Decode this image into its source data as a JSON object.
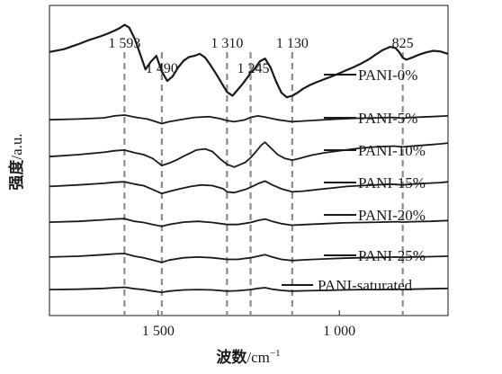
{
  "chart_data": {
    "type": "line",
    "title": "",
    "xlabel_cjk": "波数",
    "xlabel_unit": "/cm",
    "xlabel_exp": "−1",
    "ylabel_cjk": "强度",
    "ylabel_unit": "/a.u.",
    "xlim": [
      1800,
      700
    ],
    "x_ticks": [
      1500,
      1000
    ],
    "x_tick_labels": [
      "1 500",
      "1 000"
    ],
    "grid": false,
    "peak_lines": [
      1593,
      1490,
      1310,
      1245,
      1130,
      825
    ],
    "peak_labels": [
      "1 593",
      "1 490",
      "1 310",
      "1 245",
      "1 130",
      "825"
    ],
    "series": [
      {
        "name": "PANI-0%",
        "x": [
          1800,
          1760,
          1720,
          1690,
          1660,
          1640,
          1620,
          1605,
          1593,
          1580,
          1565,
          1550,
          1535,
          1520,
          1505,
          1490,
          1475,
          1460,
          1445,
          1430,
          1415,
          1400,
          1385,
          1370,
          1355,
          1340,
          1325,
          1310,
          1295,
          1280,
          1265,
          1250,
          1245,
          1235,
          1220,
          1205,
          1190,
          1175,
          1160,
          1145,
          1130,
          1115,
          1100,
          1080,
          1060,
          1040,
          1020,
          1000,
          980,
          960,
          940,
          920,
          900,
          880,
          860,
          845,
          835,
          825,
          815,
          800,
          780,
          760,
          740,
          720,
          700
        ],
        "y": [
          9.35,
          9.42,
          9.55,
          9.66,
          9.75,
          9.82,
          9.9,
          9.97,
          10.05,
          9.98,
          9.7,
          9.3,
          8.9,
          9.1,
          9.25,
          8.85,
          8.6,
          8.72,
          8.95,
          9.12,
          9.22,
          9.25,
          9.3,
          9.2,
          9.0,
          8.78,
          8.55,
          8.32,
          8.22,
          8.38,
          8.55,
          8.74,
          8.82,
          8.9,
          9.1,
          9.18,
          8.95,
          8.6,
          8.3,
          8.18,
          8.22,
          8.3,
          8.4,
          8.5,
          8.58,
          8.65,
          8.72,
          8.8,
          8.88,
          8.96,
          9.05,
          9.15,
          9.28,
          9.4,
          9.48,
          9.45,
          9.35,
          9.2,
          9.15,
          9.2,
          9.28,
          9.34,
          9.38,
          9.36,
          9.3
        ]
      },
      {
        "name": "PANI-5%",
        "x": [
          1800,
          1720,
          1650,
          1620,
          1593,
          1560,
          1530,
          1510,
          1490,
          1470,
          1440,
          1400,
          1360,
          1330,
          1310,
          1290,
          1260,
          1245,
          1225,
          1200,
          1170,
          1140,
          1130,
          1110,
          1080,
          1040,
          1000,
          950,
          900,
          850,
          825,
          800,
          750,
          700
        ],
        "y": [
          7.6,
          7.62,
          7.65,
          7.7,
          7.72,
          7.66,
          7.62,
          7.56,
          7.5,
          7.55,
          7.6,
          7.66,
          7.68,
          7.63,
          7.58,
          7.55,
          7.6,
          7.66,
          7.7,
          7.66,
          7.6,
          7.56,
          7.55,
          7.56,
          7.58,
          7.6,
          7.62,
          7.64,
          7.65,
          7.66,
          7.64,
          7.66,
          7.68,
          7.7
        ]
      },
      {
        "name": "PANI-10%",
        "x": [
          1800,
          1720,
          1650,
          1620,
          1593,
          1565,
          1540,
          1515,
          1490,
          1470,
          1450,
          1430,
          1410,
          1395,
          1370,
          1350,
          1330,
          1310,
          1290,
          1260,
          1245,
          1230,
          1215,
          1205,
          1190,
          1170,
          1150,
          1130,
          1110,
          1080,
          1040,
          1000,
          950,
          900,
          850,
          825,
          800,
          760,
          720,
          700
        ],
        "y": [
          6.65,
          6.7,
          6.76,
          6.8,
          6.82,
          6.75,
          6.7,
          6.6,
          6.42,
          6.48,
          6.56,
          6.66,
          6.75,
          6.82,
          6.85,
          6.78,
          6.6,
          6.45,
          6.38,
          6.5,
          6.62,
          6.78,
          6.95,
          7.02,
          6.88,
          6.7,
          6.6,
          6.56,
          6.6,
          6.68,
          6.75,
          6.8,
          6.86,
          6.9,
          6.92,
          6.9,
          6.92,
          6.95,
          6.98,
          7.0
        ]
      },
      {
        "name": "PANI-15%",
        "x": [
          1800,
          1720,
          1650,
          1620,
          1593,
          1565,
          1540,
          1515,
          1490,
          1470,
          1440,
          1410,
          1380,
          1350,
          1320,
          1310,
          1290,
          1260,
          1245,
          1225,
          1205,
          1185,
          1160,
          1130,
          1100,
          1060,
          1020,
          980,
          940,
          900,
          860,
          825,
          800,
          760,
          720,
          700
        ],
        "y": [
          5.88,
          5.92,
          5.96,
          5.99,
          6.0,
          5.94,
          5.9,
          5.8,
          5.7,
          5.75,
          5.82,
          5.88,
          5.92,
          5.9,
          5.82,
          5.74,
          5.72,
          5.8,
          5.86,
          5.95,
          6.02,
          5.92,
          5.82,
          5.74,
          5.76,
          5.8,
          5.84,
          5.88,
          5.9,
          5.92,
          5.94,
          5.92,
          5.94,
          5.96,
          5.98,
          6.0
        ]
      },
      {
        "name": "PANI-20%",
        "x": [
          1800,
          1720,
          1650,
          1620,
          1593,
          1565,
          1540,
          1515,
          1490,
          1470,
          1430,
          1390,
          1350,
          1310,
          1280,
          1245,
          1225,
          1205,
          1185,
          1160,
          1130,
          1090,
          1040,
          990,
          940,
          890,
          840,
          825,
          800,
          750,
          700
        ],
        "y": [
          4.96,
          4.98,
          5.02,
          5.04,
          5.05,
          4.98,
          4.95,
          4.9,
          4.85,
          4.9,
          4.96,
          4.98,
          4.95,
          4.9,
          4.9,
          4.95,
          5.0,
          5.04,
          4.98,
          4.92,
          4.88,
          4.9,
          4.92,
          4.94,
          4.95,
          4.96,
          4.97,
          4.96,
          4.97,
          4.98,
          5.0
        ]
      },
      {
        "name": "PANI-25%",
        "x": [
          1800,
          1720,
          1650,
          1620,
          1593,
          1565,
          1540,
          1515,
          1490,
          1470,
          1430,
          1390,
          1350,
          1310,
          1280,
          1245,
          1225,
          1205,
          1185,
          1160,
          1130,
          1090,
          1040,
          990,
          940,
          890,
          840,
          825,
          800,
          750,
          700
        ],
        "y": [
          4.06,
          4.08,
          4.12,
          4.14,
          4.15,
          4.08,
          4.04,
          3.98,
          3.92,
          3.98,
          4.04,
          4.06,
          4.04,
          4.0,
          4.0,
          4.04,
          4.08,
          4.12,
          4.06,
          4.0,
          3.97,
          3.99,
          4.01,
          4.03,
          4.04,
          4.05,
          4.06,
          4.05,
          4.06,
          4.07,
          4.08
        ]
      },
      {
        "name": "PANI-saturated",
        "x": [
          1800,
          1720,
          1650,
          1620,
          1593,
          1565,
          1540,
          1515,
          1490,
          1470,
          1430,
          1390,
          1350,
          1310,
          1280,
          1245,
          1225,
          1205,
          1185,
          1160,
          1130,
          1090,
          1040,
          990,
          940,
          890,
          840,
          825,
          800,
          750,
          700
        ],
        "y": [
          3.22,
          3.23,
          3.25,
          3.27,
          3.28,
          3.24,
          3.22,
          3.18,
          3.15,
          3.18,
          3.21,
          3.22,
          3.21,
          3.18,
          3.19,
          3.22,
          3.25,
          3.27,
          3.23,
          3.2,
          3.18,
          3.19,
          3.2,
          3.21,
          3.22,
          3.22,
          3.23,
          3.22,
          3.23,
          3.24,
          3.25
        ]
      }
    ],
    "legend_labels": [
      "PANI-0%",
      "PANI-5%",
      "PANI-10%",
      "PANI-15%",
      "PANI-20%",
      "PANI-25%",
      "PANI-saturated"
    ],
    "line_color": "#1a1a1a",
    "peak_line_color": "#8c8c8c",
    "background": "#ffffff"
  }
}
